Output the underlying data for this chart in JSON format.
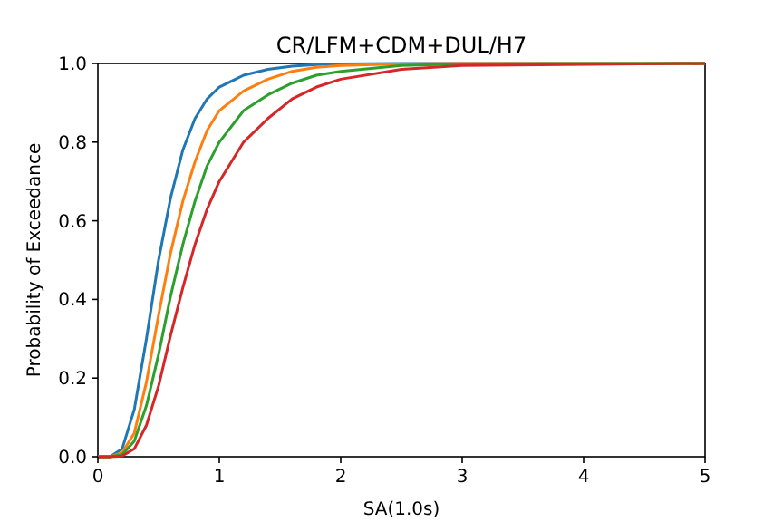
{
  "chart_data": {
    "type": "line",
    "title": "CR/LFM+CDM+DUL/H7",
    "xlabel": "SA(1.0s)",
    "ylabel": "Probability of Exceedance",
    "x": [
      0,
      0.1,
      0.2,
      0.3,
      0.4,
      0.5,
      0.6,
      0.7,
      0.8,
      0.9,
      1.0,
      1.2,
      1.4,
      1.6,
      1.8,
      2.0,
      2.5,
      3.0,
      5.0
    ],
    "series": [
      {
        "color": "#1f77b4",
        "values": [
          0,
          0,
          0.02,
          0.12,
          0.3,
          0.5,
          0.66,
          0.78,
          0.86,
          0.91,
          0.94,
          0.97,
          0.985,
          0.993,
          0.997,
          0.999,
          1,
          1,
          1
        ]
      },
      {
        "color": "#ff7f0e",
        "values": [
          0,
          0,
          0.01,
          0.06,
          0.19,
          0.36,
          0.52,
          0.65,
          0.75,
          0.83,
          0.88,
          0.93,
          0.96,
          0.98,
          0.99,
          0.995,
          0.999,
          1,
          1
        ]
      },
      {
        "color": "#2ca02c",
        "values": [
          0,
          0,
          0.005,
          0.04,
          0.13,
          0.26,
          0.41,
          0.54,
          0.65,
          0.74,
          0.8,
          0.88,
          0.92,
          0.95,
          0.97,
          0.98,
          0.995,
          0.999,
          1
        ]
      },
      {
        "color": "#d62728",
        "values": [
          0,
          0,
          0.002,
          0.02,
          0.08,
          0.18,
          0.31,
          0.43,
          0.54,
          0.63,
          0.7,
          0.8,
          0.86,
          0.91,
          0.94,
          0.96,
          0.985,
          0.995,
          1
        ]
      }
    ],
    "xlim": [
      0,
      5
    ],
    "xticks": [
      0,
      1,
      2,
      3,
      4,
      5
    ],
    "ylim": [
      0,
      1
    ],
    "yticks": [
      {
        "value": 0,
        "label": "0.0"
      },
      0.2,
      0.4,
      0.6,
      0.8,
      {
        "value": 1,
        "label": "1.0"
      }
    ],
    "grid": false,
    "marker": "none",
    "line_style": "solid"
  }
}
